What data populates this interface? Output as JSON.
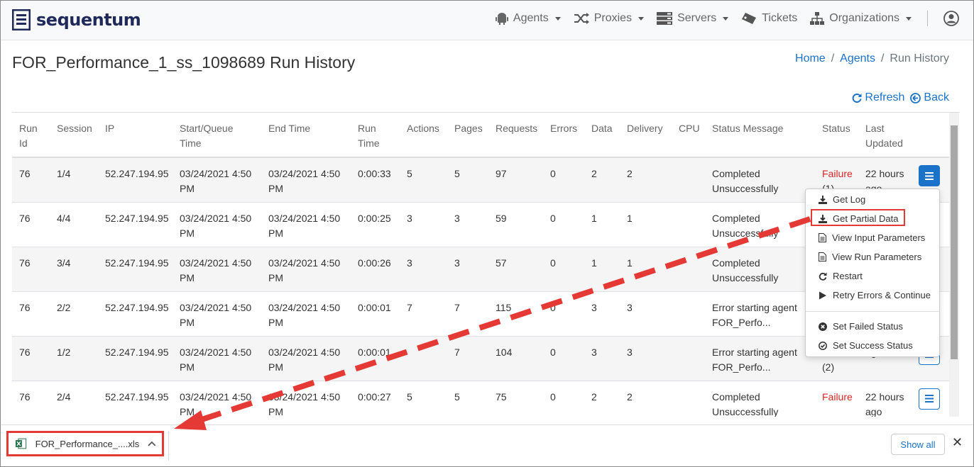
{
  "brand": {
    "name": "sequentum"
  },
  "nav": {
    "items": [
      {
        "label": "Agents",
        "icon": "android-icon",
        "dropdown": true
      },
      {
        "label": "Proxies",
        "icon": "shuffle-icon",
        "dropdown": true
      },
      {
        "label": "Servers",
        "icon": "server-icon",
        "dropdown": true
      },
      {
        "label": "Tickets",
        "icon": "ticket-icon",
        "dropdown": false
      },
      {
        "label": "Organizations",
        "icon": "sitemap-icon",
        "dropdown": true
      }
    ]
  },
  "page": {
    "title": "FOR_Performance_1_ss_1098689 Run History"
  },
  "breadcrumb": {
    "home": "Home",
    "agents": "Agents",
    "current": "Run History",
    "sep": "/"
  },
  "actions": {
    "refresh": "Refresh",
    "back": "Back"
  },
  "table": {
    "headers": [
      "Run Id",
      "Session",
      "IP",
      "Start/Queue Time",
      "End Time",
      "Run Time",
      "Actions",
      "Pages",
      "Requests",
      "Errors",
      "Data",
      "Delivery",
      "CPU",
      "Status Message",
      "Status",
      "Last Updated",
      ""
    ],
    "rows": [
      {
        "run_id": "76",
        "session": "1/4",
        "ip": "52.247.194.95",
        "start": "03/24/2021 4:50 PM",
        "end": "03/24/2021 4:50 PM",
        "run_time": "0:00:33",
        "actions": "5",
        "pages": "5",
        "requests": "97",
        "errors": "0",
        "data": "2",
        "delivery": "2",
        "cpu": "",
        "status_message": "Completed Unsuccessfully",
        "status": "Failure",
        "status_count": "(1)",
        "last_updated": "22 hours ago"
      },
      {
        "run_id": "76",
        "session": "4/4",
        "ip": "52.247.194.95",
        "start": "03/24/2021 4:50 PM",
        "end": "03/24/2021 4:50 PM",
        "run_time": "0:00:25",
        "actions": "3",
        "pages": "3",
        "requests": "59",
        "errors": "0",
        "data": "1",
        "delivery": "1",
        "cpu": "",
        "status_message": "Completed Unsuccessfully",
        "status": "",
        "status_count": "",
        "last_updated": ""
      },
      {
        "run_id": "76",
        "session": "3/4",
        "ip": "52.247.194.95",
        "start": "03/24/2021 4:50 PM",
        "end": "03/24/2021 4:50 PM",
        "run_time": "0:00:26",
        "actions": "3",
        "pages": "3",
        "requests": "57",
        "errors": "0",
        "data": "1",
        "delivery": "1",
        "cpu": "",
        "status_message": "Completed Unsuccessfully",
        "status": "",
        "status_count": "",
        "last_updated": ""
      },
      {
        "run_id": "76",
        "session": "2/2",
        "ip": "52.247.194.95",
        "start": "03/24/2021 4:50 PM",
        "end": "03/24/2021 4:50 PM",
        "run_time": "0:00:01",
        "actions": "7",
        "pages": "7",
        "requests": "115",
        "errors": "0",
        "data": "3",
        "delivery": "3",
        "cpu": "",
        "status_message": "Error starting agent FOR_Perfo...",
        "status": "",
        "status_count": "",
        "last_updated": ""
      },
      {
        "run_id": "76",
        "session": "1/2",
        "ip": "52.247.194.95",
        "start": "03/24/2021 4:50 PM",
        "end": "03/24/2021 4:50 PM",
        "run_time": "0:00:01",
        "actions": "",
        "pages": "7",
        "requests": "104",
        "errors": "0",
        "data": "3",
        "delivery": "3",
        "cpu": "",
        "status_message": "Error starting agent FOR_Perfo...",
        "status": "",
        "status_count": "(2)",
        "last_updated": "ago"
      },
      {
        "run_id": "76",
        "session": "2/4",
        "ip": "52.247.194.95",
        "start": "03/24/2021 4:50 PM",
        "end": "03/24/2021 4:50 PM",
        "run_time": "0:00:27",
        "actions": "5",
        "pages": "5",
        "requests": "75",
        "errors": "0",
        "data": "2",
        "delivery": "2",
        "cpu": "",
        "status_message": "Completed Unsuccessfully",
        "status": "Failure",
        "status_count": "",
        "last_updated": "22 hours ago"
      }
    ]
  },
  "menu": {
    "items": [
      {
        "label": "Get Log",
        "icon": "download-icon"
      },
      {
        "label": "Get Partial Data",
        "icon": "download-icon"
      },
      {
        "label": "View Input Parameters",
        "icon": "file-icon"
      },
      {
        "label": "View Run Parameters",
        "icon": "file-icon"
      },
      {
        "label": "Restart",
        "icon": "redo-icon"
      },
      {
        "label": "Retry Errors & Continue",
        "icon": "play-icon"
      },
      {
        "label": "Set Failed Status",
        "icon": "times-circle-icon"
      },
      {
        "label": "Set Success Status",
        "icon": "check-circle-icon"
      }
    ]
  },
  "downloads": {
    "file": "FOR_Performance_....xls",
    "show_all": "Show all",
    "close": "✕"
  },
  "colors": {
    "brand": "#1f2a5a",
    "link": "#1a73c9",
    "failure": "#e02424",
    "annotation": "#e53935"
  }
}
